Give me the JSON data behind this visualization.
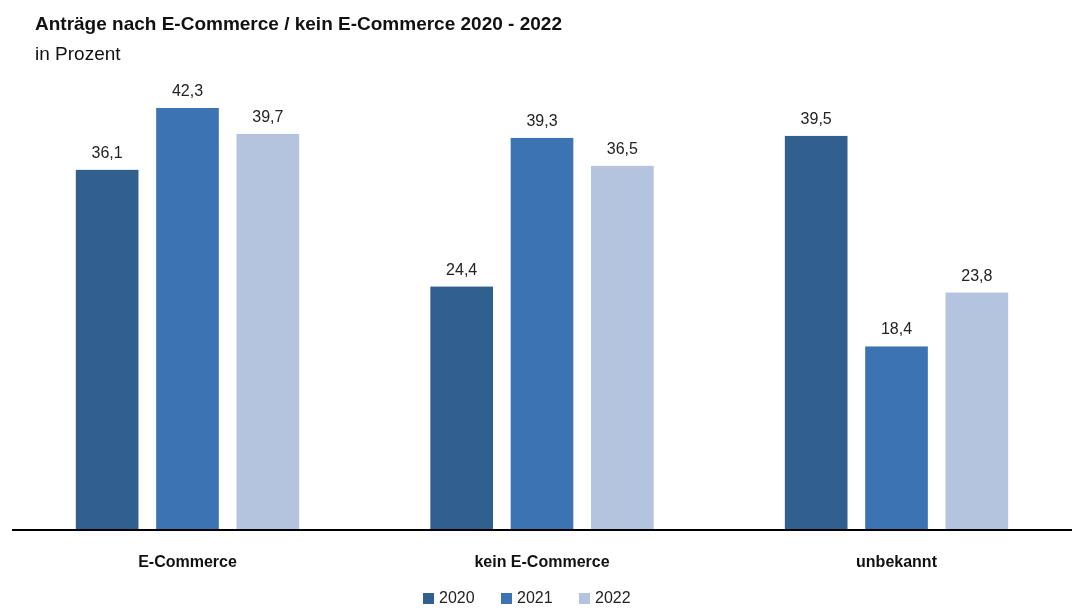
{
  "chart_data": {
    "type": "bar",
    "title": "Anträge nach E-Commerce / kein E-Commerce 2020 - 2022",
    "subtitle": "in Prozent",
    "categories": [
      "E-Commerce",
      "kein E-Commerce",
      "unbekannt"
    ],
    "legend": "bottom",
    "series": [
      {
        "name": "2020",
        "color": "#31608f",
        "values": [
          36.1,
          24.4,
          39.5
        ],
        "value_labels": [
          "36,1",
          "24,4",
          "39,5"
        ]
      },
      {
        "name": "2021",
        "color": "#3c74b3",
        "values": [
          42.3,
          39.3,
          18.4
        ],
        "value_labels": [
          "42,3",
          "39,3",
          "18,4"
        ]
      },
      {
        "name": "2022",
        "color": "#b4c3de",
        "values": [
          39.7,
          36.5,
          23.8
        ],
        "value_labels": [
          "39,7",
          "36,5",
          "23,8"
        ]
      }
    ]
  }
}
